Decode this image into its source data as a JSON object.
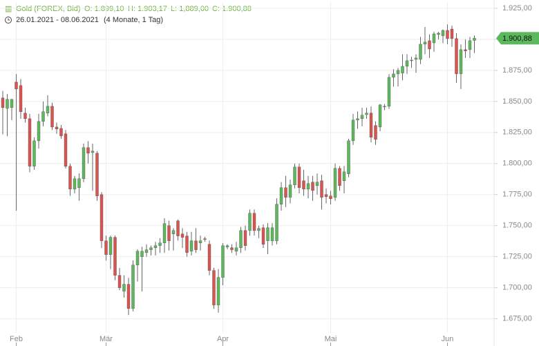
{
  "chart_data": {
    "type": "candlestick",
    "header": {
      "name": "Gold (FOREX, Bid)",
      "ohlc": [
        "O: 1.899,10",
        "H: 1.903,17",
        "L: 1,889,00",
        "C: 1.900,88"
      ],
      "range": "26.01.2021 - 08.06.2021",
      "period": "(4 Monate, 1 Tag)"
    },
    "up_color": "#5cb85c",
    "down_color": "#d9534f",
    "grid": true,
    "ylim": [
      1672,
      1930
    ],
    "yticks": [
      {
        "value": 1675,
        "label": "1.675,00"
      },
      {
        "value": 1700,
        "label": "1.700,00"
      },
      {
        "value": 1725,
        "label": "1.725,00"
      },
      {
        "value": 1750,
        "label": "1.750,00"
      },
      {
        "value": 1775,
        "label": "1.775,00"
      },
      {
        "value": 1800,
        "label": "1.800,00"
      },
      {
        "value": 1825,
        "label": "1.825,00"
      },
      {
        "value": 1850,
        "label": "1.850,00"
      },
      {
        "value": 1875,
        "label": "1.875,00"
      },
      {
        "value": 1900,
        "label": "1.900,00"
      },
      {
        "value": 1925,
        "label": "1.925,00"
      }
    ],
    "last": {
      "value": 1900.88,
      "label": "1.900,88"
    },
    "categories": [
      null,
      null,
      null,
      "Feb",
      null,
      null,
      null,
      null,
      null,
      null,
      null,
      null,
      null,
      null,
      null,
      null,
      null,
      null,
      null,
      null,
      null,
      null,
      null,
      "Mär",
      null,
      null,
      null,
      null,
      null,
      null,
      null,
      null,
      null,
      null,
      null,
      null,
      null,
      null,
      null,
      null,
      null,
      null,
      null,
      null,
      null,
      null,
      null,
      null,
      null,
      "Apr",
      null,
      null,
      null,
      null,
      null,
      null,
      null,
      null,
      null,
      null,
      null,
      null,
      null,
      null,
      null,
      null,
      null,
      null,
      null,
      null,
      null,
      null,
      null,
      "Mai",
      null,
      null,
      null,
      null,
      null,
      null,
      null,
      null,
      null,
      null,
      null,
      null,
      null,
      null,
      null,
      null,
      null,
      null,
      null,
      null,
      null,
      null,
      null,
      null,
      null,
      "Jun",
      null,
      null,
      null,
      null,
      null,
      null
    ],
    "open": [
      1852.8,
      1844.4,
      1845,
      1865.6,
      1862.8,
      1840.6,
      1836.1,
      1797.8,
      1818.3,
      1833.9,
      1840.6,
      1846.1,
      1829.4,
      1828.3,
      1823.9,
      1797.8,
      1779.4,
      1780.6,
      1787.8,
      1812.8,
      1808.9,
      1808.3,
      1775,
      1737.8,
      1726.7,
      1740.6,
      1710,
      1697.2,
      1702.8,
      1683.3,
      1718.3,
      1725,
      1728.3,
      1730.6,
      1732.2,
      1733.9,
      1736.1,
      1750,
      1743.3,
      1753.9,
      1743.3,
      1741.7,
      1729.4,
      1737.8,
      1736.1,
      1739.4,
      1735,
      1713.9,
      1686.1,
      1708.3,
      1732.8,
      1732.2,
      1729.4,
      1732.2,
      1746.1,
      1746.1,
      1760,
      1746.1,
      1748.3,
      1737.8,
      1737.8,
      1737.8,
      1767.2,
      1780.6,
      1772.8,
      1782.8,
      1797.2,
      1786.1,
      1779.4,
      1785,
      1782.2,
      1786.1,
      1775,
      1773.9,
      1772.8,
      1796.1,
      1786.1,
      1791.7,
      1818.3,
      1835,
      1836.1,
      1839.4,
      1840.6,
      1830.6,
      1829.4,
      1845.6,
      1846.1,
      1869.4,
      1872.2,
      1872.8,
      1878.3,
      1882.8,
      1883.9,
      1883.9,
      1896.1,
      1898.9,
      1897.2,
      1903.9,
      1902.8,
      1907.2,
      1908.3,
      1900.6,
      1872.2,
      1891.7,
      1891.7,
      1899.1
    ],
    "high": [
      1858.5,
      1856,
      1852,
      1872,
      1868,
      1845,
      1840,
      1821,
      1840,
      1850,
      1855,
      1849,
      1833,
      1831,
      1827,
      1800,
      1790,
      1792,
      1816,
      1818,
      1816,
      1810,
      1777,
      1742,
      1742,
      1742,
      1716,
      1710,
      1708,
      1722,
      1731,
      1733,
      1735,
      1734,
      1737,
      1740,
      1756,
      1754,
      1748,
      1755,
      1748,
      1745,
      1745,
      1748,
      1742,
      1741,
      1738,
      1716,
      1715,
      1736,
      1735,
      1735,
      1737,
      1749,
      1750,
      1763,
      1763,
      1750,
      1751,
      1752,
      1752,
      1772,
      1785,
      1790,
      1787,
      1800,
      1800,
      1795,
      1790,
      1790,
      1792,
      1791,
      1780,
      1778,
      1800,
      1798,
      1798,
      1820,
      1840,
      1842,
      1845,
      1845,
      1846,
      1834,
      1848,
      1848,
      1872,
      1876,
      1877,
      1888,
      1888,
      1886,
      1888,
      1902,
      1910,
      1904,
      1906,
      1906,
      1908,
      1912,
      1911,
      1905,
      1896,
      1900,
      1902,
      1903.2
    ],
    "low": [
      1823.5,
      1822,
      1835,
      1762,
      1836,
      1833,
      1793,
      1795,
      1812,
      1830,
      1838,
      1827,
      1824,
      1820,
      1796,
      1774,
      1776,
      1770,
      1785,
      1800,
      1778,
      1770,
      1732,
      1722,
      1715,
      1706,
      1698,
      1692,
      1678,
      1681,
      1705,
      1697,
      1725,
      1726,
      1726,
      1728,
      1728,
      1730,
      1730,
      1738,
      1732,
      1725,
      1726,
      1728,
      1730,
      1737,
      1710,
      1683,
      1680,
      1702,
      1731,
      1728,
      1726,
      1728,
      1730,
      1742,
      1742,
      1740,
      1732,
      1727,
      1734,
      1735,
      1762,
      1765,
      1768,
      1780,
      1776,
      1774,
      1772,
      1770,
      1775,
      1763,
      1768,
      1767,
      1770,
      1778,
      1776,
      1789,
      1815,
      1828,
      1830,
      1836,
      1817,
      1815,
      1826,
      1843,
      1844,
      1862,
      1862,
      1867,
      1872,
      1877,
      1873,
      1880,
      1888,
      1885,
      1890,
      1900,
      1897,
      1896,
      1894,
      1865,
      1860,
      1885,
      1885,
      1889
    ],
    "close": [
      1845,
      1851.7,
      1851.7,
      1860,
      1841.7,
      1836.1,
      1797.8,
      1818.3,
      1833.9,
      1841.7,
      1846.1,
      1829.4,
      1827.8,
      1822.2,
      1797.8,
      1779.4,
      1787.8,
      1787.8,
      1812.8,
      1808.3,
      1810,
      1773.9,
      1737.8,
      1726.7,
      1740.6,
      1710,
      1700,
      1702.8,
      1683.3,
      1718.3,
      1729.4,
      1729.4,
      1730.6,
      1732.2,
      1733.9,
      1736.1,
      1751.7,
      1737.8,
      1746.1,
      1741.7,
      1740.6,
      1728.3,
      1737.8,
      1730.6,
      1737.8,
      1738.9,
      1713.9,
      1686.1,
      1708.3,
      1733.9,
      1733.9,
      1730.6,
      1732.2,
      1746.1,
      1733.9,
      1760,
      1746.1,
      1747.8,
      1735,
      1748.3,
      1748.3,
      1767.2,
      1780.6,
      1772.8,
      1782.8,
      1797.2,
      1780.6,
      1779.4,
      1783.9,
      1778.3,
      1785,
      1772.8,
      1773.3,
      1771.7,
      1796.1,
      1782.2,
      1793.3,
      1818.3,
      1835,
      1836.1,
      1838.9,
      1840.6,
      1821.1,
      1819.4,
      1847.2,
      1846.1,
      1869.4,
      1872.2,
      1875,
      1878.3,
      1882.8,
      1883.3,
      1885,
      1896.1,
      1897.8,
      1892.2,
      1904.4,
      1905,
      1907.2,
      1900.6,
      1900.6,
      1872.2,
      1891.7,
      1890.6,
      1898.9,
      1900.9
    ]
  }
}
